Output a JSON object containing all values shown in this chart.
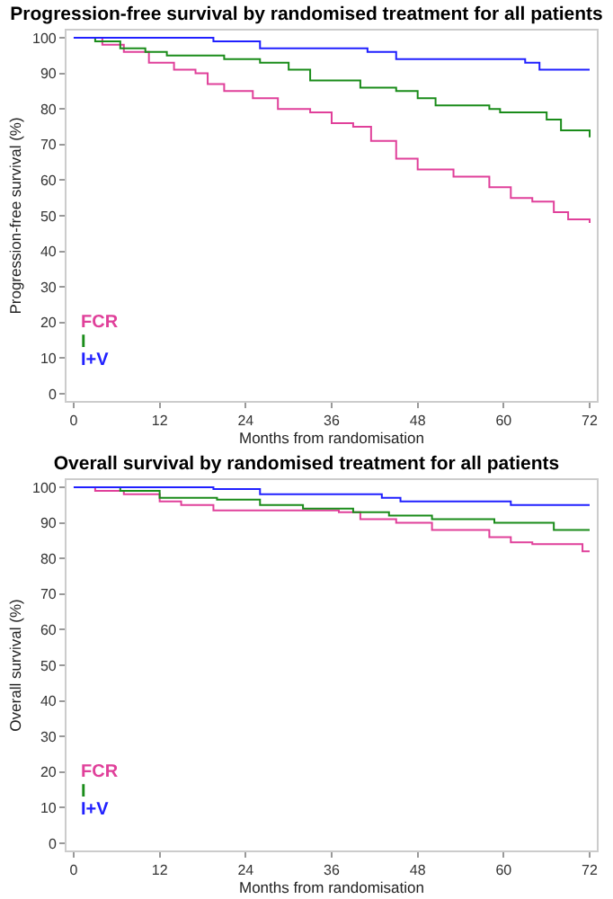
{
  "chart_data": [
    {
      "type": "step",
      "title": "Progression-free survival by randomised treatment for all patients",
      "xlabel": "Months from randomisation",
      "ylabel": "Progression-free survival (%)",
      "xlim": [
        -1,
        73
      ],
      "ylim": [
        -2,
        102
      ],
      "xticks": [
        0,
        12,
        24,
        36,
        48,
        60,
        72
      ],
      "yticks": [
        0,
        10,
        20,
        30,
        40,
        50,
        60,
        70,
        80,
        90,
        100
      ],
      "legend": "bottom left",
      "grid": false,
      "series": [
        {
          "name": "FCR",
          "color": "#e0409a",
          "x": [
            0,
            4,
            7,
            10.5,
            14,
            17,
            18.7,
            21,
            25,
            28.5,
            33,
            36,
            39,
            41.5,
            45,
            48,
            53,
            58,
            61,
            64,
            67,
            69,
            72
          ],
          "values": [
            100,
            98,
            96,
            93,
            91,
            90,
            87,
            85,
            83,
            80,
            79,
            76,
            75,
            71,
            66,
            63,
            61,
            58,
            55,
            54,
            51,
            49,
            48
          ]
        },
        {
          "name": "I",
          "color": "#1a8c1a",
          "x": [
            0,
            3,
            6.5,
            10,
            13,
            21,
            26,
            30,
            33,
            40,
            45,
            48,
            50.5,
            58,
            59.5,
            66,
            68,
            72
          ],
          "values": [
            100,
            99,
            97,
            96,
            95,
            94,
            93,
            91,
            88,
            86,
            85,
            83,
            81,
            80,
            79,
            77,
            74,
            72
          ]
        },
        {
          "name": "I+V",
          "color": "#2020ff",
          "x": [
            0,
            19.5,
            26,
            41,
            45,
            63,
            65,
            72
          ],
          "values": [
            100,
            99,
            97,
            96,
            94,
            93,
            91,
            91
          ]
        }
      ]
    },
    {
      "type": "step",
      "title": "Overall survival by randomised treatment for all patients",
      "xlabel": "Months from randomisation",
      "ylabel": "Overall survival (%)",
      "xlim": [
        -1,
        73
      ],
      "ylim": [
        -2,
        102
      ],
      "xticks": [
        0,
        12,
        24,
        36,
        48,
        60,
        72
      ],
      "yticks": [
        0,
        10,
        20,
        30,
        40,
        50,
        60,
        70,
        80,
        90,
        100
      ],
      "legend": "bottom left",
      "grid": false,
      "series": [
        {
          "name": "FCR",
          "color": "#e0409a",
          "x": [
            0,
            3,
            7,
            12,
            15,
            19.5,
            37,
            40,
            45,
            50,
            58,
            61,
            64,
            71,
            72
          ],
          "values": [
            100,
            99,
            98,
            96,
            95,
            93.5,
            93,
            91,
            90,
            88,
            86,
            84.5,
            84,
            82,
            82
          ]
        },
        {
          "name": "I",
          "color": "#1a8c1a",
          "x": [
            0,
            6.5,
            12,
            20,
            26,
            32,
            39,
            44,
            50,
            58.7,
            67,
            72
          ],
          "values": [
            100,
            99,
            97,
            96.5,
            95,
            94,
            93,
            92,
            91,
            90,
            88,
            88
          ]
        },
        {
          "name": "I+V",
          "color": "#2020ff",
          "x": [
            0,
            19.5,
            26,
            43,
            45.6,
            61,
            72
          ],
          "values": [
            100,
            99.5,
            98,
            97,
            96,
            95,
            95
          ]
        }
      ]
    }
  ]
}
